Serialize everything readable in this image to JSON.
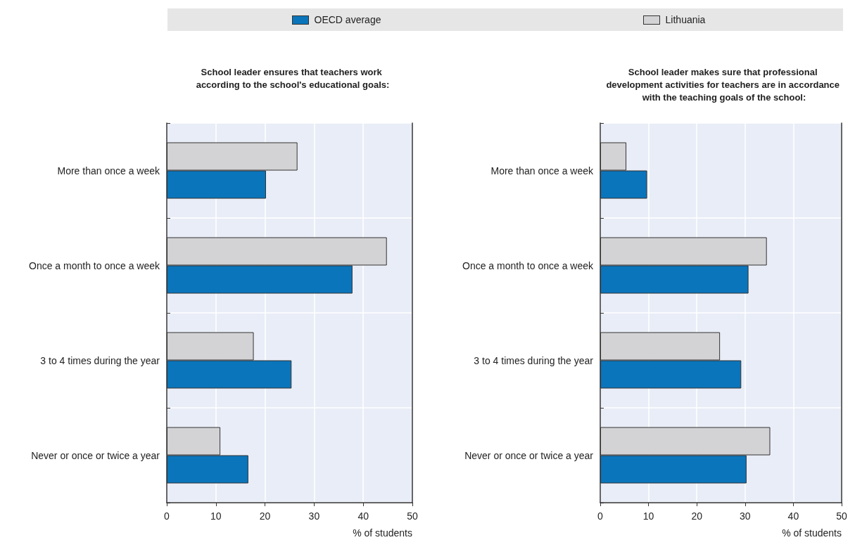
{
  "chart_data": [
    {
      "type": "bar",
      "orientation": "horizontal",
      "title": "School leader ensures that teachers work according to the school's educational goals:",
      "xlabel": "% of students",
      "categories": [
        "More than once a week",
        "Once a month to once a week",
        "3 to 4 times during the year",
        "Never or once or twice a year"
      ],
      "series": [
        {
          "name": "OECD average",
          "color": "#0a75bb",
          "values": [
            20.2,
            37.8,
            25.4,
            16.6
          ]
        },
        {
          "name": "Lithuania",
          "color": "#d3d3d5",
          "values": [
            26.6,
            44.8,
            17.7,
            10.9
          ]
        }
      ],
      "xlim": [
        0,
        50
      ],
      "xticks": [
        0,
        10,
        20,
        30,
        40,
        50
      ],
      "grid": true,
      "legend": "top"
    },
    {
      "type": "bar",
      "orientation": "horizontal",
      "title": "School leader makes sure that professional development activities for teachers are in accordance with the teaching goals of the school:",
      "xlabel": "% of students",
      "categories": [
        "More than once a week",
        "Once a month to once a week",
        "3 to 4 times during the year",
        "Never or once or twice a year"
      ],
      "series": [
        {
          "color": "#0a75bb",
          "values": [
            9.7,
            30.7,
            29.2,
            30.3
          ]
        },
        {
          "color": "#d3d3d5",
          "values": [
            5.4,
            34.5,
            24.8,
            35.2
          ]
        }
      ],
      "xlim": [
        0,
        50
      ],
      "xticks": [
        0,
        10,
        20,
        30,
        40,
        50
      ],
      "grid": true
    }
  ]
}
